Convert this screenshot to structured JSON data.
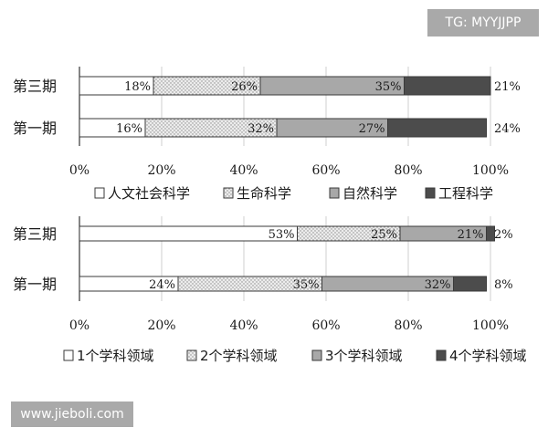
{
  "watermarks": {
    "top": "TG: MYYJJPP",
    "bottom": "www.jieboli.com"
  },
  "chart_data": [
    {
      "type": "bar",
      "orientation": "horizontal",
      "stacked": true,
      "title": "",
      "xlim": [
        0,
        100
      ],
      "x_ticks": [
        "0%",
        "20%",
        "40%",
        "60%",
        "80%",
        "100%"
      ],
      "categories": [
        "第三期",
        "第一期"
      ],
      "series": [
        {
          "name": "人文社会科学",
          "values": [
            18,
            16
          ],
          "labels": [
            "18%",
            "16%"
          ],
          "color": "#ffffff",
          "pattern": "none"
        },
        {
          "name": "生命科学",
          "values": [
            26,
            32
          ],
          "labels": [
            "26%",
            "32%"
          ],
          "color": "#e4e4e4",
          "pattern": "dots"
        },
        {
          "name": "自然科学",
          "values": [
            35,
            27
          ],
          "labels": [
            "35%",
            "27%"
          ],
          "color": "#a8a8a8",
          "pattern": "none"
        },
        {
          "name": "工程科学",
          "values": [
            21,
            24
          ],
          "labels": [
            "21%",
            "24%"
          ],
          "color": "#4c4c4c",
          "pattern": "none"
        }
      ],
      "grid": true,
      "legend_position": "bottom"
    },
    {
      "type": "bar",
      "orientation": "horizontal",
      "stacked": true,
      "title": "",
      "xlim": [
        0,
        100
      ],
      "x_ticks": [
        "0%",
        "20%",
        "40%",
        "60%",
        "80%",
        "100%"
      ],
      "categories": [
        "第三期",
        "第一期"
      ],
      "series": [
        {
          "name": "1个学科领域",
          "values": [
            53,
            24
          ],
          "labels": [
            "53%",
            "24%"
          ],
          "color": "#ffffff",
          "pattern": "none"
        },
        {
          "name": "2个学科领域",
          "values": [
            25,
            35
          ],
          "labels": [
            "25%",
            "35%"
          ],
          "color": "#e4e4e4",
          "pattern": "dots"
        },
        {
          "name": "3个学科领域",
          "values": [
            21,
            32
          ],
          "labels": [
            "21%",
            "32%"
          ],
          "color": "#a8a8a8",
          "pattern": "none"
        },
        {
          "name": "4个学科领域",
          "values": [
            2,
            8
          ],
          "labels": [
            "2%",
            "8%"
          ],
          "color": "#4c4c4c",
          "pattern": "none"
        }
      ],
      "grid": true,
      "legend_position": "bottom"
    }
  ]
}
